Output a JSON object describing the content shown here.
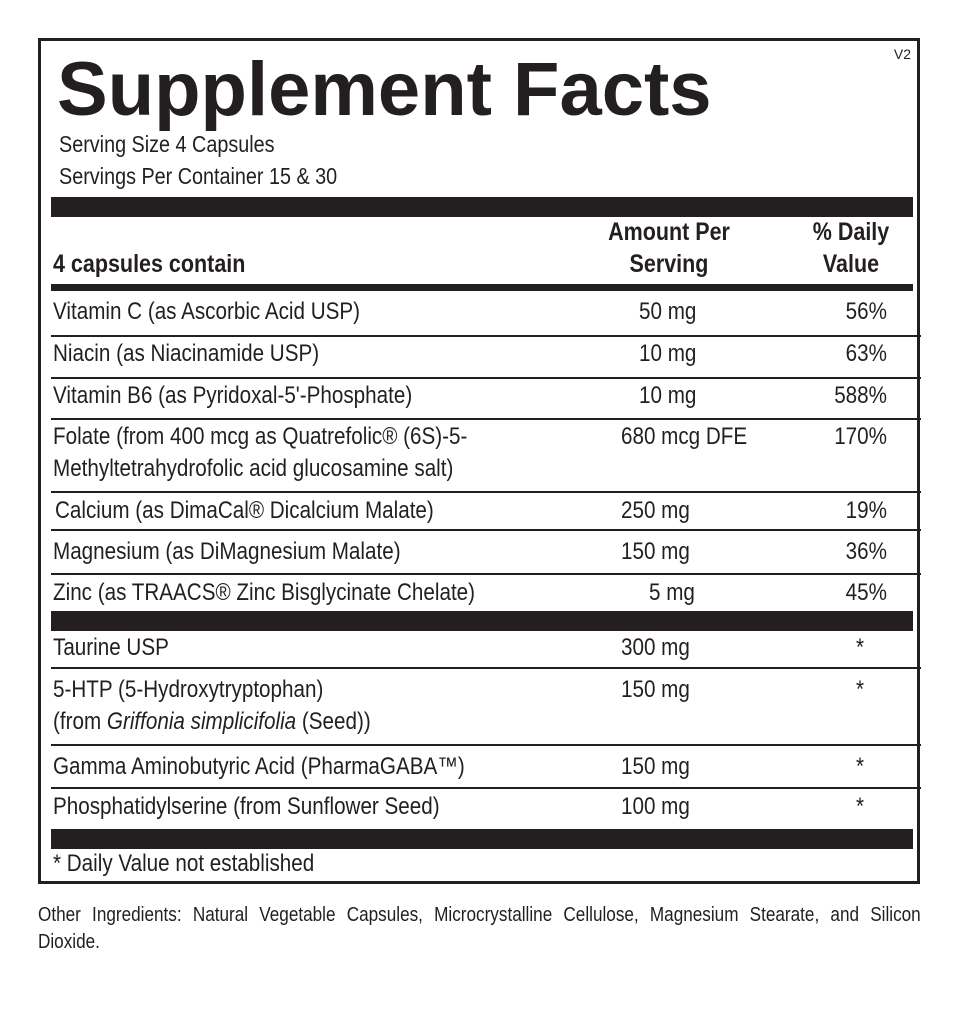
{
  "version": "V2",
  "title": "Supplement Facts",
  "serving_size": "Serving Size 4 Capsules",
  "servings_per_container": "Servings Per Container 15 & 30",
  "header": {
    "contain": "4 capsules contain",
    "amount_line1": "Amount Per",
    "amount_line2": "Serving",
    "dv_line1": "% Daily",
    "dv_line2": "Value"
  },
  "section1": [
    {
      "name": "Vitamin C (as Ascorbic Acid USP)",
      "amount": "50 mg",
      "dv": "56%"
    },
    {
      "name": "Niacin (as Niacinamide USP)",
      "amount": "10 mg",
      "dv": "63%"
    },
    {
      "name": "Vitamin B6 (as Pyridoxal-5'-Phosphate)",
      "amount": "10 mg",
      "dv": "588%"
    },
    {
      "name": "Folate (from 400 mcg as Quatrefolic® (6S)-5-",
      "name2": "Methyltetrahydrofolic acid glucosamine salt)",
      "amount": "680 mcg DFE",
      "dv": "170%"
    },
    {
      "name": "Calcium (as DimaCal® Dicalcium Malate)",
      "amount": "250 mg",
      "dv": "19%"
    },
    {
      "name": "Magnesium (as DiMagnesium Malate)",
      "amount": "150 mg",
      "dv": "36%"
    },
    {
      "name": "Zinc (as TRAACS® Zinc Bisglycinate Chelate)",
      "amount": "5 mg",
      "dv": "45%"
    }
  ],
  "section2": [
    {
      "name": "Taurine USP",
      "amount": "300 mg",
      "dv": "*"
    },
    {
      "name": "5-HTP (5-Hydroxytryptophan)",
      "name2_prefix": "(from ",
      "name2_italic": "Griffonia simplicifolia",
      "name2_suffix": " (Seed))",
      "amount": "150 mg",
      "dv": "*"
    },
    {
      "name": "Gamma Aminobutyric Acid (PharmaGABA™)",
      "amount": "150 mg",
      "dv": "*"
    },
    {
      "name": "Phosphatidylserine (from Sunflower Seed)",
      "amount": "100 mg",
      "dv": "*"
    }
  ],
  "footnote": "* Daily Value not established",
  "other_ingredients": "Other Ingredients: Natural Vegetable Capsules, Microcrystalline Cellulose, Magnesium Stearate, and Silicon Dioxide."
}
